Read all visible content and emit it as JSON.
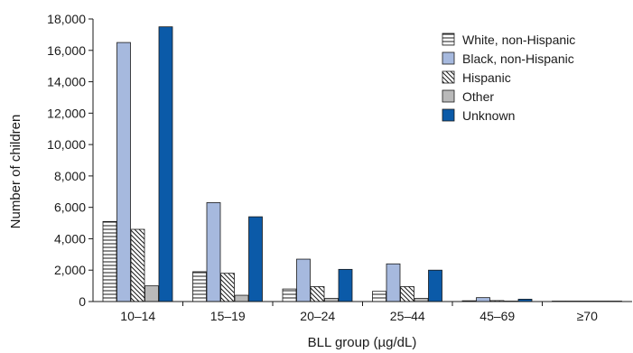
{
  "chart_data": {
    "type": "bar",
    "title": "",
    "xlabel": "BLL group (µg/dL)",
    "ylabel": "Number of children",
    "ylim": [
      0,
      18000
    ],
    "yticks": [
      0,
      2000,
      4000,
      6000,
      8000,
      10000,
      12000,
      14000,
      16000,
      18000
    ],
    "ytick_labels": [
      "0",
      "2,000",
      "4,000",
      "6,000",
      "8,000",
      "10,000",
      "12,000",
      "14,000",
      "16,000",
      "18,000"
    ],
    "categories": [
      "10–14",
      "15–19",
      "20–24",
      "25–44",
      "45–69",
      "≥70"
    ],
    "grid": false,
    "legend_position": "top-right",
    "series": [
      {
        "name": "White, non-Hispanic",
        "pattern": "horizontal-lines",
        "color": "#ffffff",
        "values": [
          5100,
          1900,
          800,
          650,
          50,
          10
        ]
      },
      {
        "name": "Black, non-Hispanic",
        "pattern": "solid",
        "color": "#a6b9de",
        "values": [
          16500,
          6300,
          2700,
          2400,
          250,
          20
        ]
      },
      {
        "name": "Hispanic",
        "pattern": "diagonal-lines",
        "color": "#ffffff",
        "values": [
          4600,
          1800,
          950,
          950,
          60,
          10
        ]
      },
      {
        "name": "Other",
        "pattern": "solid",
        "color": "#b9b9b9",
        "values": [
          1000,
          400,
          200,
          200,
          20,
          5
        ]
      },
      {
        "name": "Unknown",
        "pattern": "solid",
        "color": "#0b5aa8",
        "values": [
          17500,
          5400,
          2050,
          2000,
          150,
          15
        ]
      }
    ]
  }
}
